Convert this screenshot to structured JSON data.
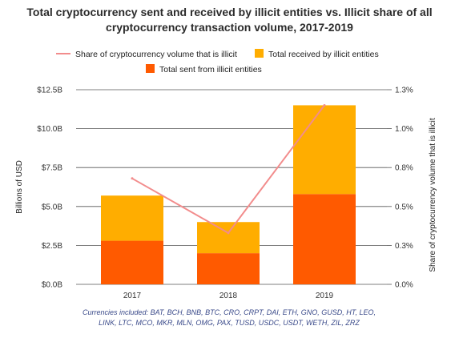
{
  "chart_data": {
    "type": "bar",
    "title": "Total cryptocurrency sent and received by illicit entities vs. Illicit share of all cryptocurrency transaction volume, 2017-2019",
    "title_lines": [
      "Total cryptocurrency sent and received by illicit entities vs. Illicit share of all",
      "cryptocurrency transaction volume, 2017-2019"
    ],
    "categories": [
      "2017",
      "2018",
      "2019"
    ],
    "stacked": true,
    "series": [
      {
        "name": "Total sent from illicit entities",
        "values": [
          2.8,
          2.0,
          5.8
        ],
        "color": "#ff5a00",
        "axis": "left"
      },
      {
        "name": "Total received by illicit entities",
        "values": [
          2.9,
          2.0,
          5.7
        ],
        "color": "#ffad00",
        "axis": "left"
      },
      {
        "name": "Share of cryptocurrency volume that is illicit",
        "type": "line",
        "values": [
          0.68,
          0.33,
          1.15
        ],
        "color": "#f28c8c",
        "axis": "right"
      }
    ],
    "ylabel": "Billions of USD",
    "ylim": [
      0,
      12.5
    ],
    "yticks": [
      "$0.0B",
      "$2.5B",
      "$5.0B",
      "$7.5B",
      "$10.0B",
      "$12.5B"
    ],
    "y2label": "Share of cryptocurrency volume that is illicit",
    "y2lim": [
      0,
      1.25
    ],
    "y2ticks": [
      "0.0%",
      "0.3%",
      "0.5%",
      "0.8%",
      "1.0%",
      "1.3%"
    ],
    "grid": true,
    "legend_position": "top",
    "legend_order": [
      2,
      1,
      0
    ],
    "footnote": [
      "Currencies included: BAT, BCH, BNB, BTC, CRO, CRPT, DAI, ETH, GNO, GUSD, HT, LEO,",
      "LINK, LTC, MCO, MKR, MLN, OMG, PAX, TUSD, USDC, USDT, WETH, ZIL, ZRZ"
    ]
  }
}
